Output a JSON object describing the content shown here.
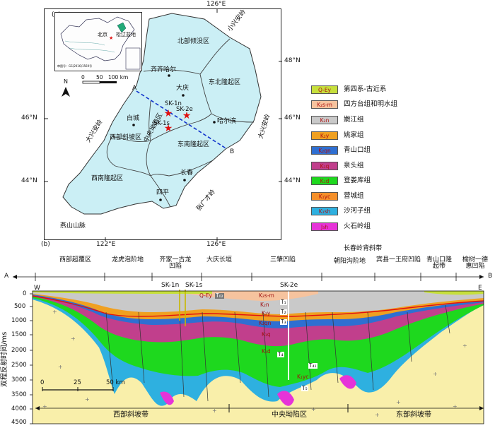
{
  "panel_a": {
    "label": "(a)",
    "lon_ticks": [
      "126°E",
      "122°E",
      "126°E"
    ],
    "lat_ticks": [
      "48°N",
      "46°N",
      "44°N",
      "46°N",
      "44°N"
    ],
    "inset": {
      "beijing": "北京",
      "basin": "松辽盆地",
      "note": "审图号：GS(2016)1569号"
    },
    "north": "N",
    "scale": {
      "zero": "0",
      "mid": "50",
      "end": "100 km"
    },
    "mountains": {
      "lesser_khingan": "小兴安岭",
      "greater_khingan": "大兴安岭",
      "zhangguangcai": "张广才岭",
      "yanshan": "燕山山脉"
    },
    "regions": {
      "north": "北部倾没区",
      "northeast": "东北隆起区",
      "west": "西部斜坡区",
      "central": "中央坳陷区",
      "southeast": "东南隆起区",
      "southwest": "西南隆起区"
    },
    "cities": {
      "qiqihar": "齐齐哈尔",
      "daqing": "大庆",
      "baicheng": "白城",
      "harbin": "哈尔滨",
      "changchun": "长春",
      "siping": "四平"
    },
    "wells": {
      "sk1n": "SK-1n",
      "sk2e": "SK-2e",
      "sk1s": "SK-1s"
    },
    "profile": {
      "a": "A",
      "b": "B"
    }
  },
  "legend": [
    {
      "code": "Q-Ey",
      "name": "第四系-古近系",
      "color": "#c6df3c"
    },
    {
      "code": "K₂s-m",
      "name": "四方台组和明水组",
      "color": "#f6c39e"
    },
    {
      "code": "K₂n",
      "name": "嫩江组",
      "color": "#c9c9c9"
    },
    {
      "code": "K₂y",
      "name": "姚家组",
      "color": "#f0a020"
    },
    {
      "code": "K₂qn",
      "name": "青山口组",
      "color": "#2f6fd1"
    },
    {
      "code": "K₁q",
      "name": "泉头组",
      "color": "#c13f8c"
    },
    {
      "code": "K₁d",
      "name": "登娄库组",
      "color": "#1ed81e"
    },
    {
      "code": "K₁yc",
      "name": "营城组",
      "color": "#f5902a"
    },
    {
      "code": "K₁sh",
      "name": "沙河子组",
      "color": "#2eb0e0"
    },
    {
      "code": "J₃h",
      "name": "火石岭组",
      "color": "#e633d8"
    }
  ],
  "panel_b": {
    "label": "(b)",
    "units": [
      "西部超覆区",
      "龙虎泡阶地",
      "齐家一古龙凹陷",
      "大庆长垣",
      "三肇凹陷",
      "朝阳沟阶地",
      "长春岭背斜带",
      "宾县一王府凹陷",
      "青山口隆起带",
      "榆树一德惠凹陷"
    ],
    "ends": {
      "a": "A",
      "b": "B",
      "w": "W",
      "e": "E"
    },
    "wells": {
      "sk1n": "SK-1n",
      "sk1s": "SK-1s",
      "sk2e": "SK-2e"
    },
    "ylabel": "双程反射时间/ms",
    "yticks": [
      "0",
      "500",
      "1000",
      "1500",
      "2000",
      "2500",
      "3000",
      "3500",
      "4000",
      "4500"
    ],
    "scale": {
      "zero": "0",
      "mid": "25",
      "end": "50 km"
    },
    "zones": [
      "西部斜坡带",
      "中央坳陷区",
      "东部斜坡带"
    ],
    "horizons": [
      "T₀₂",
      "T₁",
      "T₂",
      "T₃",
      "T₄",
      "T₄₁",
      "T₅"
    ],
    "layer_labels": [
      "Q-Ey",
      "K₂s-m",
      "K₂n",
      "K₂y",
      "K₂qn",
      "K₁q",
      "K₁d",
      "K₁yc"
    ]
  }
}
